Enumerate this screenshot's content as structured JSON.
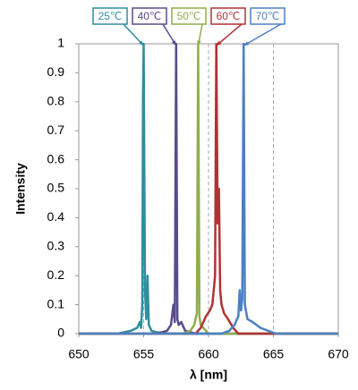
{
  "chart_data": {
    "type": "line",
    "x_label": "λ [nm]",
    "y_label": "Intensity",
    "xlim": [
      650,
      670
    ],
    "xticks": [
      650,
      655,
      660,
      665,
      670
    ],
    "ylim": [
      0,
      1
    ],
    "yticks": [
      0,
      0.1,
      0.2,
      0.3,
      0.4,
      0.5,
      0.6,
      0.7,
      0.8,
      0.9,
      1
    ],
    "grid": "x",
    "series": [
      {
        "name": "25℃",
        "color": "#2f8e9e",
        "x": [
          650,
          653,
          654,
          654.5,
          654.7,
          654.8,
          654.9,
          654.95,
          655.0,
          655.1,
          655.2,
          655.3,
          655.4,
          655.6,
          656,
          657,
          670
        ],
        "values": [
          0,
          0,
          0.01,
          0.02,
          0.04,
          0.02,
          0.1,
          0.82,
          1,
          0.15,
          0.05,
          0.2,
          0.03,
          0.01,
          0.005,
          0,
          0
        ]
      },
      {
        "name": "40℃",
        "color": "#5a4a8c",
        "x": [
          650,
          656,
          656.8,
          657.1,
          657.3,
          657.4,
          657.5,
          657.6,
          657.7,
          657.9,
          658.2,
          659,
          670
        ],
        "values": [
          0,
          0,
          0.01,
          0.03,
          0.1,
          0.04,
          1,
          0.05,
          0.03,
          0.04,
          0.01,
          0,
          0
        ]
      },
      {
        "name": "50℃",
        "color": "#8fae4e",
        "x": [
          650,
          658,
          658.6,
          658.9,
          659.0,
          659.1,
          659.2,
          659.3,
          659.4,
          659.6,
          660,
          670
        ],
        "values": [
          0,
          0,
          0.01,
          0.03,
          0.05,
          0.07,
          1,
          0.06,
          0.03,
          0.02,
          0,
          0
        ]
      },
      {
        "name": "60℃",
        "color": "#b03234",
        "x": [
          650,
          659,
          659.4,
          659.8,
          660.1,
          660.3,
          660.5,
          660.6,
          660.7,
          660.8,
          660.9,
          661.0,
          661.2,
          661.5,
          661.9,
          662.3,
          670
        ],
        "values": [
          0,
          0,
          0.02,
          0.06,
          0.08,
          0.1,
          0.2,
          1,
          0.38,
          0.5,
          0.15,
          0.1,
          0.07,
          0.05,
          0.02,
          0,
          0
        ]
      },
      {
        "name": "70℃",
        "color": "#4b80c4",
        "x": [
          650,
          661,
          661.6,
          662.0,
          662.3,
          662.4,
          662.5,
          662.6,
          662.7,
          662.8,
          663.0,
          663.4,
          664.0,
          664.6,
          665.2,
          670
        ],
        "values": [
          0,
          0,
          0.01,
          0.03,
          0.06,
          0.15,
          0.08,
          0.12,
          1,
          0.1,
          0.05,
          0.04,
          0.02,
          0.01,
          0,
          0
        ]
      }
    ]
  }
}
